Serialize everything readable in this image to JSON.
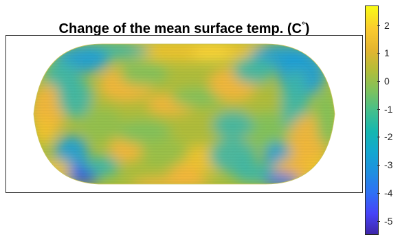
{
  "title": "Change of the mean surface temp. (C",
  "title_degree": "°",
  "title_close": ")",
  "colorbar": {
    "min": -5.5,
    "max": 2.7,
    "ticks": [
      "2",
      "1",
      "0",
      "-1",
      "-2",
      "-3",
      "-4",
      "-5"
    ]
  },
  "chart_data": {
    "type": "heatmap",
    "projection": "Robinson-like global map",
    "title": "Change of the mean surface temp. (C°)",
    "color_range": [
      -5.5,
      2.7
    ],
    "colorbar_ticks": [
      2,
      1,
      0,
      -1,
      -2,
      -3,
      -4,
      -5
    ],
    "colormap": "parula",
    "background_value": 0.3
  }
}
